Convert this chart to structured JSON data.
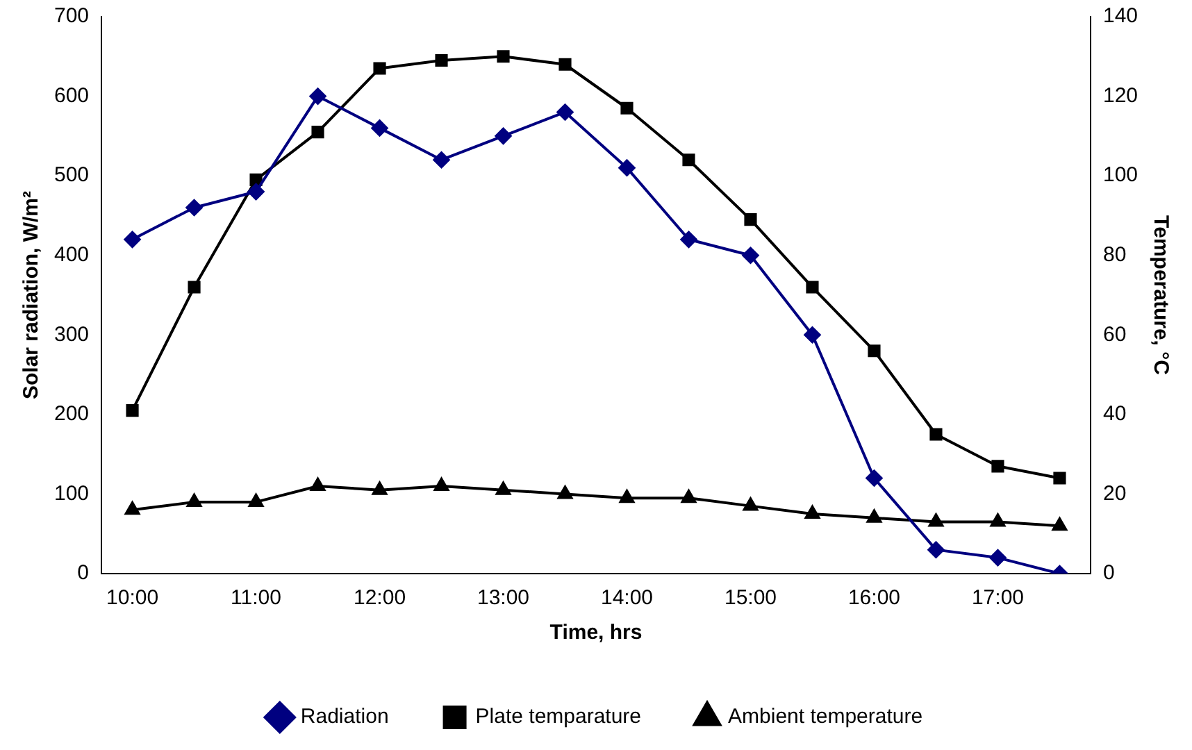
{
  "chart_data": {
    "type": "line",
    "xlabel": "Time, hrs",
    "ylabel": "Solar radiation, W/m²",
    "y2label": "Temperature, °C",
    "categories": [
      "10:00",
      null,
      "11:00",
      null,
      "12:00",
      null,
      "13:00",
      null,
      "14:00",
      null,
      "15:00",
      null,
      "16:00",
      null,
      "17:00",
      null
    ],
    "ylim": [
      0,
      700
    ],
    "yticks": [
      0,
      100,
      200,
      300,
      400,
      500,
      600,
      700
    ],
    "y2lim": [
      0,
      140
    ],
    "y2ticks": [
      0,
      20,
      40,
      60,
      80,
      100,
      120,
      140
    ],
    "grid": false,
    "legend": "bottom",
    "series": [
      {
        "name": "Radiation",
        "color": "#000080",
        "marker": "diamond",
        "values": [
          420,
          460,
          480,
          600,
          560,
          520,
          550,
          580,
          510,
          420,
          400,
          300,
          120,
          30,
          20,
          0
        ]
      },
      {
        "name": "Plate temparature",
        "color": "#000000",
        "marker": "square",
        "axis": "y2",
        "values": [
          41,
          72,
          99,
          111,
          127,
          129,
          130,
          128,
          117,
          104,
          89,
          72,
          56,
          35,
          27,
          24
        ]
      },
      {
        "name": "Ambient temperature",
        "color": "#000000",
        "marker": "triangle",
        "axis": "y2",
        "values": [
          16,
          18,
          18,
          22,
          21,
          22,
          21,
          20,
          19,
          19,
          17,
          15,
          14,
          13,
          13,
          12
        ]
      }
    ]
  }
}
